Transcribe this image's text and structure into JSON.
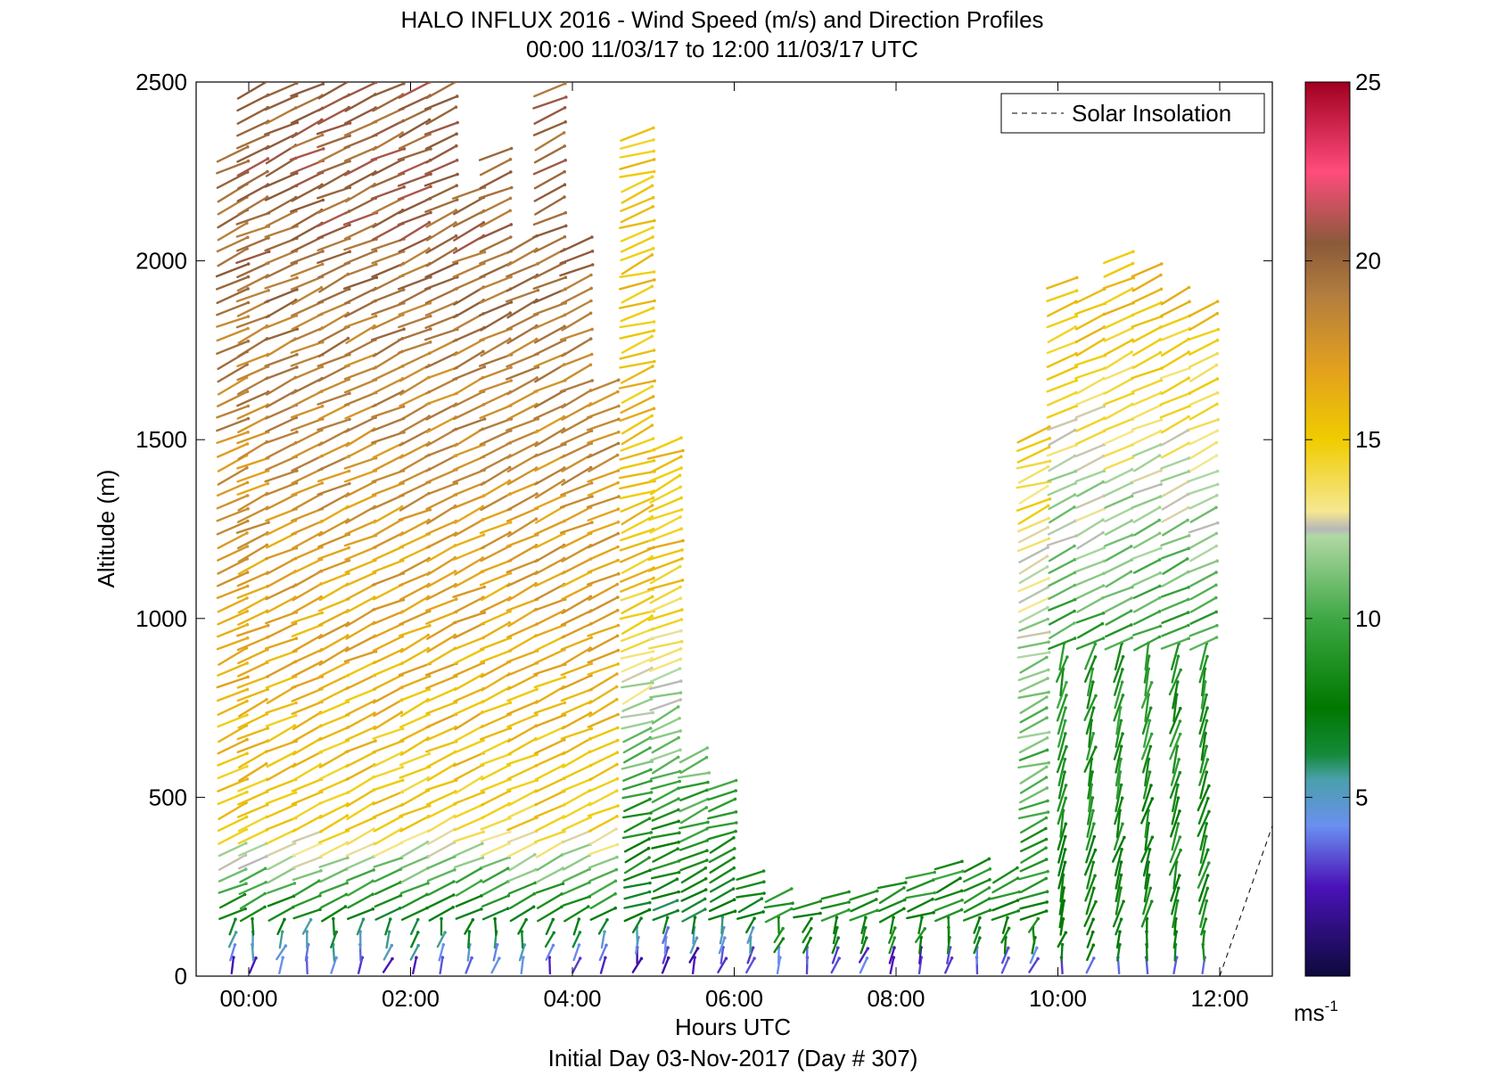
{
  "chart_data": {
    "type": "wind-barb-profile",
    "title": "HALO INFLUX 2016 - Wind Speed (m/s) and Direction Profiles",
    "subtitle": "00:00 11/03/17 to 12:00 11/03/17  UTC",
    "xlabel": "Hours UTC",
    "xlabel2": "Initial Day 03-Nov-2017 (Day # 307)",
    "ylabel": "Altitude (m)",
    "xlim": [
      -0.65,
      12.65
    ],
    "ylim": [
      0,
      2500
    ],
    "x_ticks": [
      0,
      2,
      4,
      6,
      8,
      10,
      12
    ],
    "x_tick_labels": [
      "00:00",
      "02:00",
      "04:00",
      "06:00",
      "08:00",
      "10:00",
      "12:00"
    ],
    "y_ticks": [
      0,
      500,
      1000,
      1500,
      2000,
      2500
    ],
    "y_tick_labels": [
      "0",
      "500",
      "1000",
      "1500",
      "2000",
      "2500"
    ],
    "legend": {
      "label": "Solar Insolation",
      "style": "dashed",
      "placement": "top-right"
    },
    "colorbar": {
      "range": [
        0,
        25
      ],
      "ticks": [
        5,
        10,
        15,
        20,
        25
      ],
      "tick_labels": [
        "5",
        "10",
        "15",
        "20",
        "25"
      ],
      "unit_label": "ms",
      "unit_exponent": "-1",
      "stops": [
        {
          "v": 0,
          "c": "#0d0a3c"
        },
        {
          "v": 2.5,
          "c": "#4a12b8"
        },
        {
          "v": 4.2,
          "c": "#6a8ff0"
        },
        {
          "v": 5.5,
          "c": "#4aa0aa"
        },
        {
          "v": 6.2,
          "c": "#158a3a"
        },
        {
          "v": 7.5,
          "c": "#007800"
        },
        {
          "v": 10,
          "c": "#3ea844"
        },
        {
          "v": 12.3,
          "c": "#b0d8a4"
        },
        {
          "v": 12.5,
          "c": "#b8b8b8"
        },
        {
          "v": 13,
          "c": "#f5e890"
        },
        {
          "v": 15,
          "c": "#f0cc00"
        },
        {
          "v": 17,
          "c": "#e2a01e"
        },
        {
          "v": 19,
          "c": "#b47e3e"
        },
        {
          "v": 20.5,
          "c": "#8a5a3a"
        },
        {
          "v": 22.5,
          "c": "#ff4c7c"
        },
        {
          "v": 25,
          "c": "#a00020"
        }
      ]
    },
    "profile_times_h": [
      -0.2,
      0.05,
      0.4,
      0.72,
      1.05,
      1.38,
      1.72,
      2.05,
      2.38,
      2.72,
      3.05,
      3.38,
      3.72,
      4.05,
      4.38,
      4.8,
      5.15,
      5.5,
      5.85,
      6.2,
      6.55,
      6.9,
      7.25,
      7.6,
      7.95,
      8.3,
      8.65,
      9.0,
      9.35,
      9.7,
      10.05,
      10.4,
      10.75,
      11.1,
      11.45,
      11.8
    ],
    "profile_tops_m": [
      2300,
      2480,
      2490,
      2490,
      2490,
      2490,
      2490,
      2490,
      2490,
      2200,
      2300,
      2050,
      2490,
      2050,
      1650,
      2360,
      1500,
      620,
      550,
      300,
      250,
      220,
      240,
      240,
      260,
      300,
      320,
      310,
      300,
      1530,
      1950,
      1920,
      2040,
      2000,
      1910,
      1880
    ],
    "profile_speed_model": "speed varies with altitude and time (m/s)",
    "solar_insolation": {
      "x": [
        12.0,
        12.65
      ],
      "y": [
        0,
        420
      ]
    }
  }
}
